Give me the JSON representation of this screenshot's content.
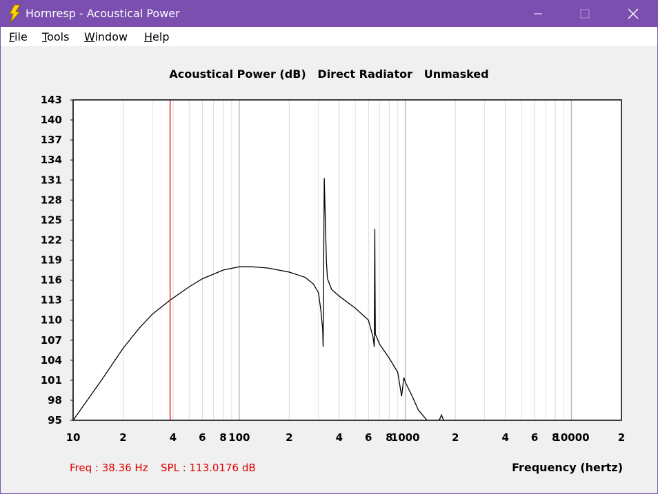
{
  "window": {
    "title": "Hornresp - Acoustical Power",
    "menu": [
      "File",
      "Tools",
      "Window",
      "Help"
    ]
  },
  "chart_data": {
    "type": "line",
    "title": "Acoustical Power (dB)   Direct Radiator   Unmasked",
    "x_label": "Frequency (hertz)",
    "x_scale": "log",
    "color": "#000000",
    "x": [
      10,
      15,
      20,
      25,
      30,
      38.36,
      50,
      60,
      80,
      100,
      120,
      150,
      200,
      250,
      280,
      300,
      310,
      318,
      320,
      325,
      330,
      335,
      340,
      360,
      400,
      500,
      600,
      640,
      650,
      655,
      657,
      660,
      700,
      800,
      900,
      950,
      980,
      1000,
      1100,
      1200,
      1300,
      1350,
      1400,
      1600,
      1650,
      1700
    ],
    "values": [
      95,
      101.2,
      105.8,
      108.8,
      110.9,
      113.0,
      115.0,
      116.2,
      117.5,
      118.0,
      118.0,
      117.8,
      117.2,
      116.4,
      115.4,
      114.1,
      111.5,
      108.6,
      106.0,
      131.3,
      124.9,
      118.7,
      116.2,
      114.6,
      113.6,
      111.8,
      110.0,
      107.4,
      106.0,
      123.7,
      115.9,
      107.9,
      106.4,
      104.3,
      102.2,
      98.6,
      101.4,
      100.7,
      98.6,
      96.5,
      95.5,
      95,
      null,
      95,
      95.8,
      95
    ],
    "xlim": [
      10,
      20000
    ],
    "ylim": [
      95,
      143
    ],
    "xticks": [
      10,
      {
        "value": 20,
        "label": "2"
      },
      {
        "value": 40,
        "label": "4"
      },
      {
        "value": 60,
        "label": "6"
      },
      {
        "value": 80,
        "label": "8"
      },
      100,
      {
        "value": 200,
        "label": "2"
      },
      {
        "value": 400,
        "label": "4"
      },
      {
        "value": 600,
        "label": "6"
      },
      {
        "value": 800,
        "label": "8"
      },
      1000,
      {
        "value": 2000,
        "label": "2"
      },
      {
        "value": 4000,
        "label": "4"
      },
      {
        "value": 6000,
        "label": "6"
      },
      {
        "value": 8000,
        "label": "8"
      },
      10000,
      {
        "value": 20000,
        "label": "2"
      }
    ],
    "x_minor_grid": [
      30,
      50,
      70,
      90,
      300,
      500,
      700,
      900,
      3000,
      5000,
      7000,
      9000
    ],
    "yticks": [
      95,
      98,
      101,
      104,
      107,
      110,
      113,
      116,
      119,
      122,
      125,
      128,
      131,
      134,
      137,
      140,
      143
    ],
    "grid": true,
    "cursor": {
      "freq": 38.36,
      "spl": 113.0176,
      "color": "#e00000",
      "freq_label": "Freq : 38.36 Hz",
      "spl_label": "SPL : 113.0176 dB"
    }
  }
}
